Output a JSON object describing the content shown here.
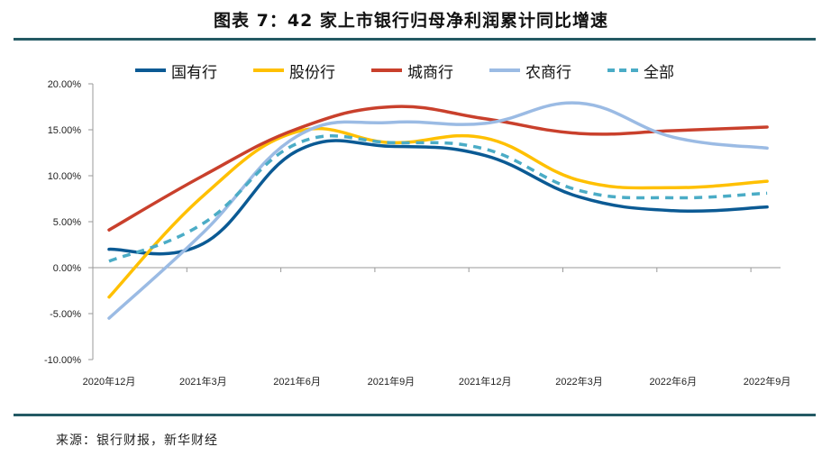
{
  "title": "图表 7：42 家上市银行归母净利润累计同比增速",
  "source": "来源：银行财报，新华财经",
  "chart_data": {
    "type": "line",
    "title": "图表 7：42 家上市银行归母净利润累计同比增速",
    "xlabel": "",
    "ylabel": "",
    "x": [
      "2020年12月",
      "2021年3月",
      "2021年6月",
      "2021年9月",
      "2021年12月",
      "2022年3月",
      "2022年6月",
      "2022年9月"
    ],
    "ylim": [
      -10,
      20
    ],
    "yticks": [
      -10,
      -5,
      0,
      5,
      10,
      15,
      20
    ],
    "ytick_labels": [
      "-10.00%",
      "-5.00%",
      "0.00%",
      "5.00%",
      "10.00%",
      "15.00%",
      "20.00%"
    ],
    "grid": false,
    "legend_position": "top",
    "smooth": true,
    "series": [
      {
        "name": "国有行",
        "color": "#0b5a94",
        "dash": false,
        "values": [
          2.0,
          2.6,
          12.7,
          13.2,
          12.2,
          7.7,
          6.2,
          6.6
        ]
      },
      {
        "name": "股份行",
        "color": "#ffc000",
        "dash": false,
        "values": [
          -3.2,
          7.8,
          14.8,
          13.6,
          14.1,
          9.5,
          8.7,
          9.4
        ]
      },
      {
        "name": "城商行",
        "color": "#c9402c",
        "dash": false,
        "values": [
          4.1,
          10.0,
          15.1,
          17.5,
          16.2,
          14.6,
          14.9,
          15.3
        ]
      },
      {
        "name": "农商行",
        "color": "#9bbbe4",
        "dash": false,
        "values": [
          -5.5,
          3.8,
          14.3,
          15.8,
          15.7,
          17.9,
          14.2,
          13.0
        ]
      },
      {
        "name": "全部",
        "color": "#4bacc6",
        "dash": true,
        "values": [
          0.7,
          4.8,
          13.5,
          13.6,
          12.9,
          8.4,
          7.6,
          8.1
        ]
      }
    ]
  }
}
